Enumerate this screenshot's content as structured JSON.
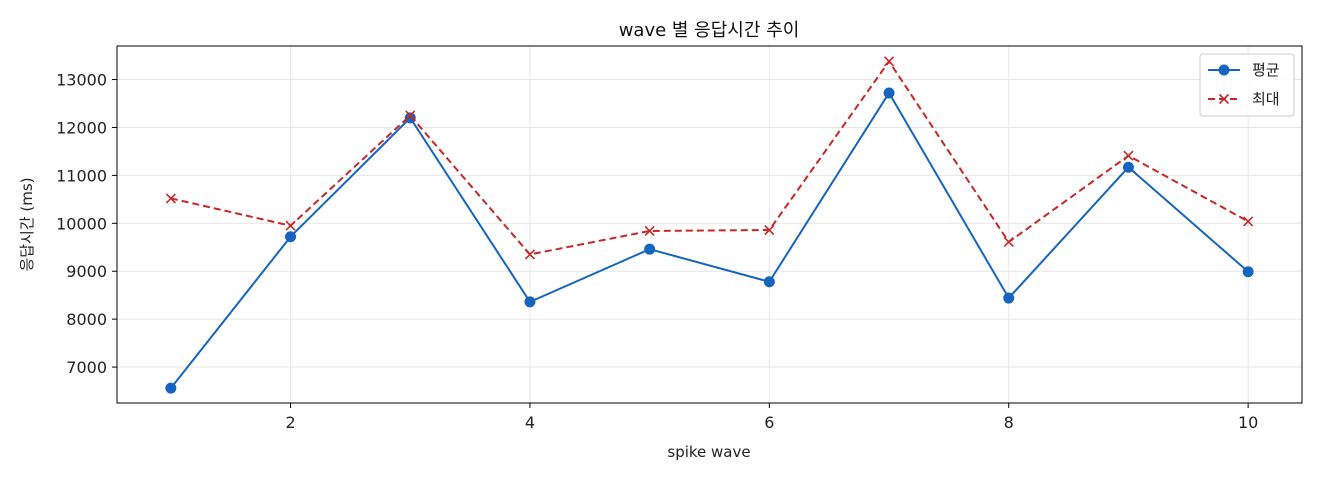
{
  "chart_data": {
    "type": "line",
    "title": "wave 별 응답시간 추이",
    "xlabel": "spike wave",
    "ylabel": "응답시간 (ms)",
    "x": [
      1,
      2,
      3,
      4,
      5,
      6,
      7,
      8,
      9,
      10
    ],
    "xlim": [
      0.55,
      10.45
    ],
    "ylim": [
      6250,
      13700
    ],
    "x_ticks": [
      2,
      4,
      6,
      8,
      10
    ],
    "y_ticks": [
      7000,
      8000,
      9000,
      10000,
      11000,
      12000,
      13000
    ],
    "grid": true,
    "legend_position": "top-right",
    "series": [
      {
        "name": "평균",
        "color": "#1565c0",
        "line_style": "solid",
        "marker": "circle",
        "values": [
          6560,
          9720,
          12200,
          8360,
          9460,
          8780,
          12720,
          8440,
          11170,
          8990
        ]
      },
      {
        "name": "최대",
        "color": "#c62828",
        "line_style": "dashed",
        "marker": "x",
        "values": [
          10520,
          9950,
          12250,
          9350,
          9840,
          9860,
          13380,
          9610,
          11410,
          10040
        ]
      }
    ]
  }
}
